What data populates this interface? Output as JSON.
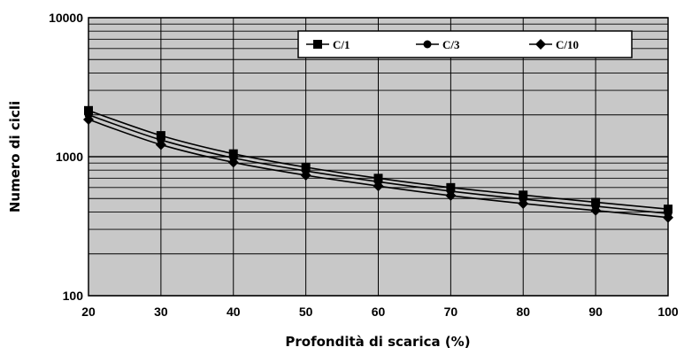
{
  "chart_data": {
    "type": "line",
    "x": [
      20,
      30,
      40,
      50,
      60,
      70,
      80,
      90,
      100
    ],
    "series": [
      {
        "name": "C/1",
        "marker": "square",
        "values": [
          2150,
          1420,
          1050,
          840,
          700,
          600,
          530,
          470,
          420
        ]
      },
      {
        "name": "C/3",
        "marker": "circle",
        "values": [
          2000,
          1320,
          980,
          790,
          660,
          565,
          495,
          440,
          390
        ]
      },
      {
        "name": "C/10",
        "marker": "diamond",
        "values": [
          1850,
          1220,
          910,
          735,
          615,
          525,
          460,
          410,
          365
        ]
      }
    ],
    "xlabel": "Profondità di scarica (%)",
    "ylabel": "Numero di cicli",
    "xlim": [
      20,
      100
    ],
    "ylim": [
      100,
      10000
    ],
    "yscale": "log",
    "xticks": [
      "20",
      "30",
      "40",
      "50",
      "60",
      "70",
      "80",
      "90",
      "100"
    ],
    "yticks": [
      "100",
      "1000",
      "10000"
    ],
    "grid": true,
    "legend_position": "top-right",
    "colors": {
      "plot_background": "#c8c8c8",
      "grid": "#000000",
      "line": "#000000"
    }
  }
}
